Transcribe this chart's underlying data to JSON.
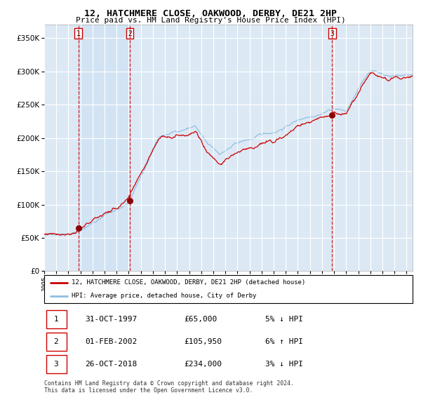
{
  "title": "12, HATCHMERE CLOSE, OAKWOOD, DERBY, DE21 2HP",
  "subtitle": "Price paid vs. HM Land Registry's House Price Index (HPI)",
  "legend_line1": "12, HATCHMERE CLOSE, OAKWOOD, DERBY, DE21 2HP (detached house)",
  "legend_line2": "HPI: Average price, detached house, City of Derby",
  "transactions": [
    {
      "num": 1,
      "date": "31-OCT-1997",
      "price": 65000,
      "year": 1997.833,
      "hpi_pct": "5% ↓ HPI"
    },
    {
      "num": 2,
      "date": "01-FEB-2002",
      "price": 105950,
      "year": 2002.083,
      "hpi_pct": "6% ↑ HPI"
    },
    {
      "num": 3,
      "date": "26-OCT-2018",
      "price": 234000,
      "year": 2018.833,
      "hpi_pct": "3% ↓ HPI"
    }
  ],
  "footer": "Contains HM Land Registry data © Crown copyright and database right 2024.\nThis data is licensed under the Open Government Licence v3.0.",
  "hpi_color": "#90bde0",
  "price_color": "#cc0000",
  "dot_color": "#8b0000",
  "vline_color": "#cc0000",
  "bg_color": "#dce9f5",
  "grid_color": "#ffffff",
  "ylim": [
    0,
    370000
  ],
  "xlim_start": 1995.0,
  "xlim_end": 2025.5
}
